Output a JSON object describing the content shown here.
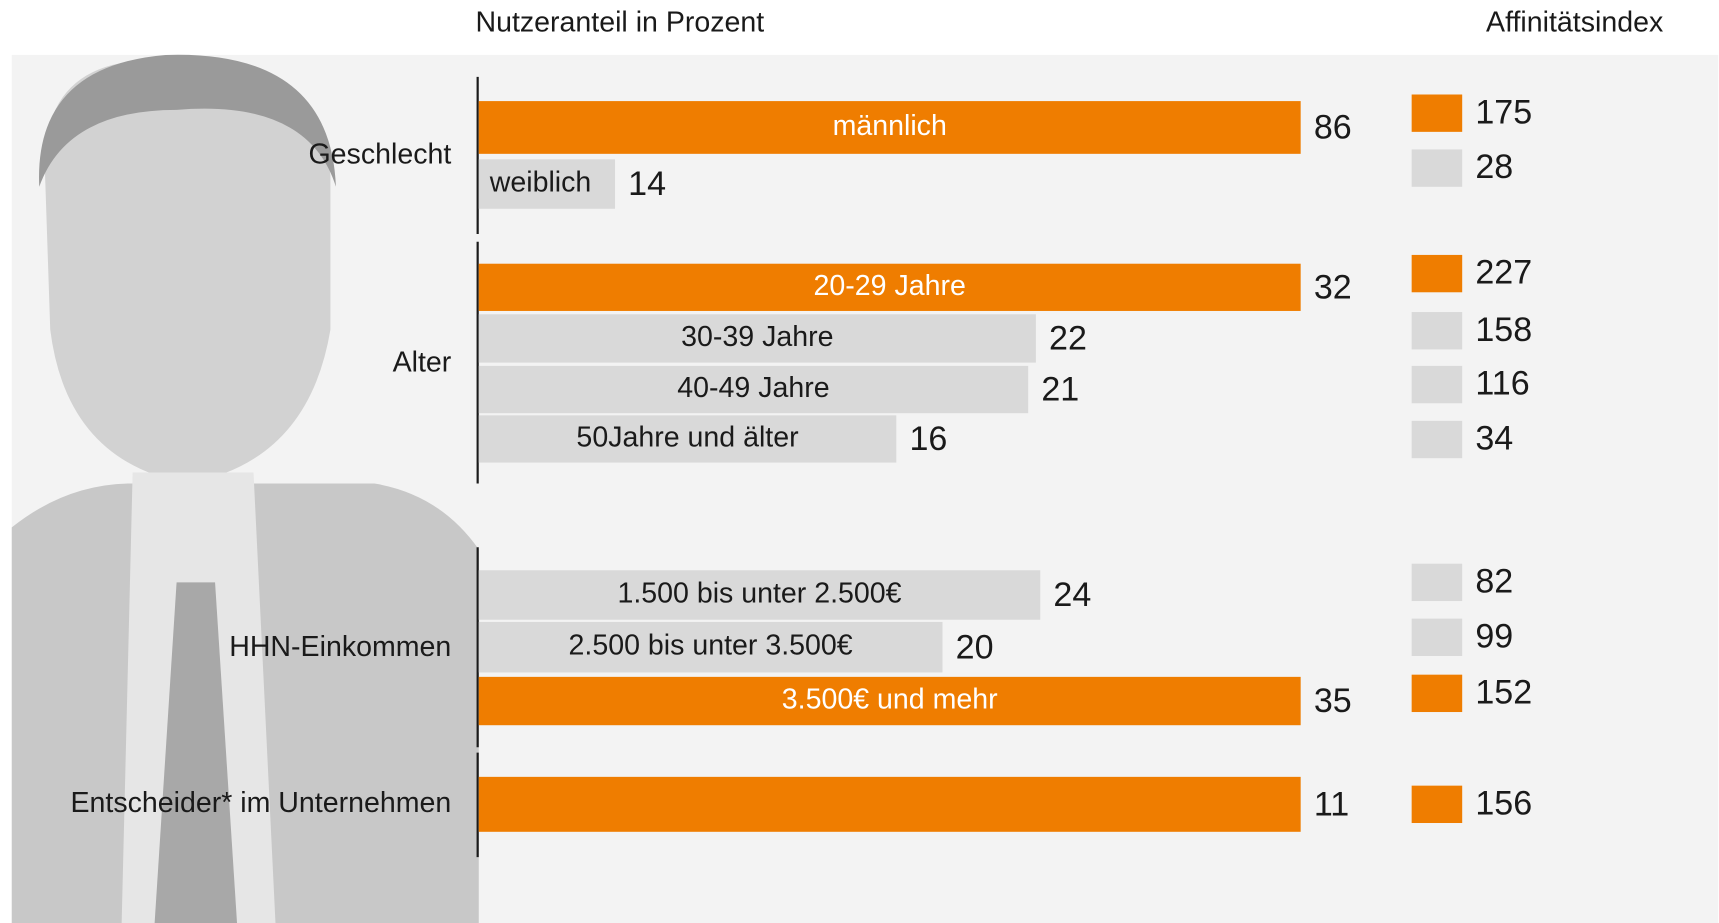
{
  "header": {
    "share_title": "Nutzeranteil in Prozent",
    "index_title": "Affinitätsindex"
  },
  "groups": [
    {
      "label": "Geschlecht",
      "rows": [
        {
          "label": "männlich",
          "share": 86,
          "index": 175,
          "color": "#ef7d00"
        },
        {
          "label": "weiblich",
          "share": 14,
          "index": 28,
          "color": "#d9d9d9"
        }
      ]
    },
    {
      "label": "Alter",
      "rows": [
        {
          "label": "20-29 Jahre",
          "share": 32,
          "index": 227,
          "color": "#ef7d00"
        },
        {
          "label": "30-39 Jahre",
          "share": 22,
          "index": 158,
          "color": "#d9d9d9"
        },
        {
          "label": "40-49 Jahre",
          "share": 21,
          "index": 116,
          "color": "#d9d9d9"
        },
        {
          "label": "50Jahre und älter",
          "share": 16,
          "index": 34,
          "color": "#d9d9d9"
        }
      ]
    },
    {
      "label": "HHN-Einkommen",
      "rows": [
        {
          "label": "1.500 bis unter 2.500€",
          "share": 24,
          "index": 82,
          "color": "#d9d9d9"
        },
        {
          "label": "2.500 bis unter 3.500€",
          "share": 20,
          "index": 99,
          "color": "#d9d9d9"
        },
        {
          "label": "3.500€ und mehr",
          "share": 35,
          "index": 152,
          "color": "#ef7d00"
        }
      ]
    },
    {
      "label": "Entscheider* im Unternehmen",
      "rows": [
        {
          "share": 11,
          "index": 156,
          "color": "#ef7d00"
        }
      ]
    }
  ]
}
